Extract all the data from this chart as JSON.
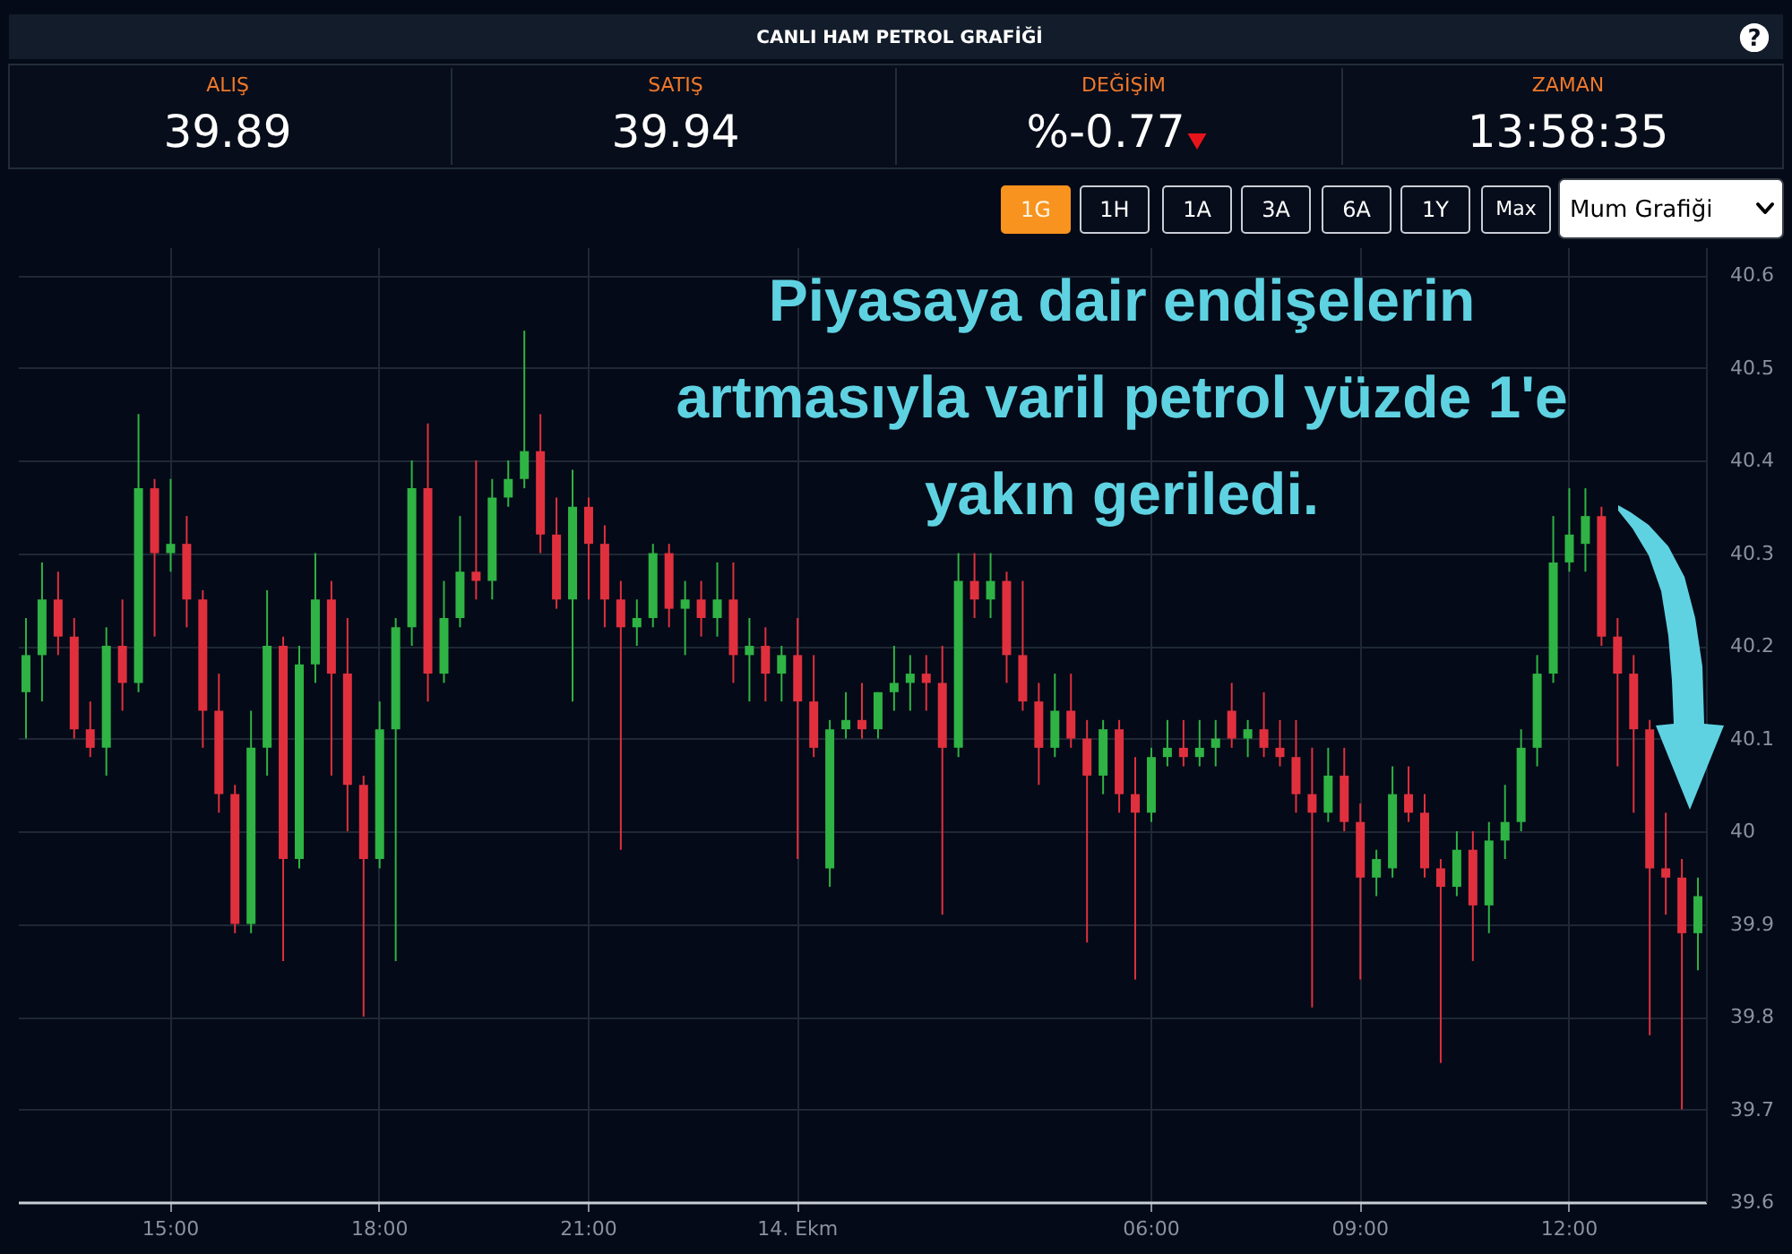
{
  "chart_data": {
    "type": "candlestick",
    "title": "CANLI HAM PETROL GRAFİĞİ",
    "annotations": [
      "?",
      "ALIŞ",
      "39.89",
      "SATIŞ",
      "39.94",
      "DEĞİŞİM",
      "%-0.77",
      "ZAMAN",
      "13:58:35",
      "1G",
      "1H",
      "1A",
      "3A",
      "6A",
      "1Y",
      "Max",
      "Mum Grafiği",
      "Piyasaya dair endişelerin\nartmasıyla varil petrol yüzde 1'e\nyakın geriledi."
    ],
    "categories": [
      null,
      null,
      null,
      null,
      null,
      null,
      null,
      null,
      null,
      "15:00",
      null,
      null,
      null,
      null,
      null,
      null,
      null,
      null,
      null,
      null,
      null,
      null,
      "18:00",
      null,
      null,
      null,
      null,
      null,
      null,
      null,
      null,
      null,
      null,
      null,
      null,
      "21:00",
      null,
      null,
      null,
      null,
      null,
      null,
      null,
      null,
      null,
      null,
      null,
      null,
      "14. Ekm",
      null,
      null,
      null,
      null,
      null,
      null,
      null,
      null,
      null,
      null,
      null,
      null,
      null,
      null,
      null,
      null,
      null,
      null,
      null,
      null,
      null,
      "06:00",
      null,
      null,
      null,
      null,
      null,
      null,
      null,
      null,
      null,
      null,
      null,
      null,
      "09:00",
      null,
      null,
      null,
      null,
      null,
      null,
      null,
      null,
      null,
      null,
      null,
      null,
      "12:00",
      null,
      null,
      null,
      null,
      null,
      null,
      null,
      null
    ],
    "ohlc": [
      [
        40.15,
        40.23,
        40.1,
        40.19
      ],
      [
        40.19,
        40.29,
        40.14,
        40.25
      ],
      [
        40.25,
        40.28,
        40.19,
        40.21
      ],
      [
        40.21,
        40.23,
        40.1,
        40.11
      ],
      [
        40.11,
        40.14,
        40.08,
        40.09
      ],
      [
        40.09,
        40.22,
        40.06,
        40.2
      ],
      [
        40.2,
        40.25,
        40.13,
        40.16
      ],
      [
        40.16,
        40.45,
        40.15,
        40.37
      ],
      [
        40.37,
        40.38,
        40.21,
        40.3
      ],
      [
        40.3,
        40.38,
        40.28,
        40.31
      ],
      [
        40.31,
        40.34,
        40.22,
        40.25
      ],
      [
        40.25,
        40.26,
        40.09,
        40.13
      ],
      [
        40.13,
        40.17,
        40.02,
        40.04
      ],
      [
        40.04,
        40.05,
        39.89,
        39.9
      ],
      [
        39.9,
        40.13,
        39.89,
        40.09
      ],
      [
        40.09,
        40.26,
        40.06,
        40.2
      ],
      [
        40.2,
        40.21,
        39.86,
        39.97
      ],
      [
        39.97,
        40.2,
        39.96,
        40.18
      ],
      [
        40.18,
        40.3,
        40.16,
        40.25
      ],
      [
        40.25,
        40.27,
        40.06,
        40.17
      ],
      [
        40.17,
        40.23,
        40.0,
        40.05
      ],
      [
        40.05,
        40.06,
        39.8,
        39.97
      ],
      [
        39.97,
        40.14,
        39.96,
        40.11
      ],
      [
        40.11,
        40.23,
        39.86,
        40.22
      ],
      [
        40.22,
        40.4,
        40.2,
        40.37
      ],
      [
        40.37,
        40.44,
        40.14,
        40.17
      ],
      [
        40.17,
        40.27,
        40.16,
        40.23
      ],
      [
        40.23,
        40.34,
        40.22,
        40.28
      ],
      [
        40.28,
        40.4,
        40.25,
        40.27
      ],
      [
        40.27,
        40.38,
        40.25,
        40.36
      ],
      [
        40.36,
        40.4,
        40.35,
        40.38
      ],
      [
        40.38,
        40.54,
        40.37,
        40.41
      ],
      [
        40.41,
        40.45,
        40.3,
        40.32
      ],
      [
        40.32,
        40.36,
        40.24,
        40.25
      ],
      [
        40.25,
        40.39,
        40.14,
        40.35
      ],
      [
        40.35,
        40.36,
        40.25,
        40.31
      ],
      [
        40.31,
        40.33,
        40.22,
        40.25
      ],
      [
        40.25,
        40.27,
        39.98,
        40.22
      ],
      [
        40.22,
        40.25,
        40.2,
        40.23
      ],
      [
        40.23,
        40.31,
        40.22,
        40.3
      ],
      [
        40.3,
        40.31,
        40.22,
        40.24
      ],
      [
        40.24,
        40.27,
        40.19,
        40.25
      ],
      [
        40.25,
        40.27,
        40.21,
        40.23
      ],
      [
        40.23,
        40.29,
        40.21,
        40.25
      ],
      [
        40.25,
        40.29,
        40.16,
        40.19
      ],
      [
        40.19,
        40.23,
        40.14,
        40.2
      ],
      [
        40.2,
        40.22,
        40.14,
        40.17
      ],
      [
        40.17,
        40.2,
        40.14,
        40.19
      ],
      [
        40.19,
        40.23,
        39.97,
        40.14
      ],
      [
        40.14,
        40.19,
        40.08,
        40.09
      ],
      [
        39.96,
        40.12,
        39.94,
        40.11
      ],
      [
        40.11,
        40.15,
        40.1,
        40.12
      ],
      [
        40.12,
        40.16,
        40.1,
        40.11
      ],
      [
        40.11,
        40.15,
        40.1,
        40.15
      ],
      [
        40.15,
        40.2,
        40.13,
        40.16
      ],
      [
        40.16,
        40.19,
        40.13,
        40.17
      ],
      [
        40.17,
        40.19,
        40.13,
        40.16
      ],
      [
        40.16,
        40.2,
        39.91,
        40.09
      ],
      [
        40.09,
        40.3,
        40.08,
        40.27
      ],
      [
        40.27,
        40.3,
        40.23,
        40.25
      ],
      [
        40.25,
        40.3,
        40.23,
        40.27
      ],
      [
        40.27,
        40.28,
        40.16,
        40.19
      ],
      [
        40.19,
        40.27,
        40.13,
        40.14
      ],
      [
        40.14,
        40.16,
        40.05,
        40.09
      ],
      [
        40.09,
        40.17,
        40.08,
        40.13
      ],
      [
        40.13,
        40.17,
        40.09,
        40.1
      ],
      [
        40.1,
        40.12,
        39.88,
        40.06
      ],
      [
        40.06,
        40.12,
        40.04,
        40.11
      ],
      [
        40.11,
        40.12,
        40.02,
        40.04
      ],
      [
        40.04,
        40.08,
        39.84,
        40.02
      ],
      [
        40.02,
        40.09,
        40.01,
        40.08
      ],
      [
        40.08,
        40.12,
        40.07,
        40.09
      ],
      [
        40.09,
        40.12,
        40.07,
        40.08
      ],
      [
        40.08,
        40.12,
        40.07,
        40.09
      ],
      [
        40.09,
        40.12,
        40.07,
        40.1
      ],
      [
        40.13,
        40.16,
        40.09,
        40.1
      ],
      [
        40.1,
        40.12,
        40.08,
        40.11
      ],
      [
        40.11,
        40.15,
        40.08,
        40.09
      ],
      [
        40.09,
        40.12,
        40.07,
        40.08
      ],
      [
        40.08,
        40.12,
        40.02,
        40.04
      ],
      [
        40.04,
        40.09,
        39.81,
        40.02
      ],
      [
        40.02,
        40.09,
        40.01,
        40.06
      ],
      [
        40.06,
        40.09,
        40.0,
        40.01
      ],
      [
        40.01,
        40.03,
        39.84,
        39.95
      ],
      [
        39.95,
        39.98,
        39.93,
        39.97
      ],
      [
        39.96,
        40.07,
        39.95,
        40.04
      ],
      [
        40.04,
        40.07,
        40.01,
        40.02
      ],
      [
        40.02,
        40.04,
        39.95,
        39.96
      ],
      [
        39.96,
        39.97,
        39.75,
        39.94
      ],
      [
        39.94,
        40.0,
        39.93,
        39.98
      ],
      [
        39.98,
        40.0,
        39.86,
        39.92
      ],
      [
        39.92,
        40.01,
        39.89,
        39.99
      ],
      [
        39.99,
        40.05,
        39.97,
        40.01
      ],
      [
        40.01,
        40.11,
        40.0,
        40.09
      ],
      [
        40.09,
        40.19,
        40.07,
        40.17
      ],
      [
        40.17,
        40.34,
        40.16,
        40.29
      ],
      [
        40.29,
        40.37,
        40.28,
        40.32
      ],
      [
        40.31,
        40.37,
        40.28,
        40.34
      ],
      [
        40.34,
        40.35,
        40.2,
        40.21
      ],
      [
        40.21,
        40.23,
        40.07,
        40.17
      ],
      [
        40.17,
        40.19,
        40.02,
        40.11
      ],
      [
        40.11,
        40.12,
        39.78,
        39.96
      ],
      [
        39.96,
        40.02,
        39.91,
        39.95
      ],
      [
        39.95,
        39.97,
        39.7,
        39.89
      ],
      [
        39.89,
        39.95,
        39.85,
        39.93
      ]
    ],
    "colors": [
      "#2fb344",
      "#2fb344",
      "#e0303e",
      "#e0303e",
      "#e0303e",
      "#2fb344",
      "#e0303e",
      "#2fb344",
      "#e0303e",
      "#2fb344",
      "#e0303e",
      "#e0303e",
      "#e0303e",
      "#e0303e",
      "#2fb344",
      "#2fb344",
      "#e0303e",
      "#2fb344",
      "#2fb344",
      "#e0303e",
      "#e0303e",
      "#e0303e",
      "#2fb344",
      "#2fb344",
      "#2fb344",
      "#e0303e",
      "#2fb344",
      "#2fb344",
      "#e0303e",
      "#2fb344",
      "#2fb344",
      "#2fb344",
      "#e0303e",
      "#e0303e",
      "#2fb344",
      "#e0303e",
      "#e0303e",
      "#e0303e",
      "#2fb344",
      "#2fb344",
      "#e0303e",
      "#2fb344",
      "#e0303e",
      "#2fb344",
      "#e0303e",
      "#2fb344",
      "#e0303e",
      "#2fb344",
      "#e0303e",
      "#e0303e",
      "#2fb344",
      "#2fb344",
      "#e0303e",
      "#2fb344",
      "#2fb344",
      "#2fb344",
      "#e0303e",
      "#e0303e",
      "#2fb344",
      "#e0303e",
      "#2fb344",
      "#e0303e",
      "#e0303e",
      "#e0303e",
      "#2fb344",
      "#e0303e",
      "#e0303e",
      "#2fb344",
      "#e0303e",
      "#e0303e",
      "#2fb344",
      "#2fb344",
      "#e0303e",
      "#2fb344",
      "#2fb344",
      "#e0303e",
      "#2fb344",
      "#e0303e",
      "#e0303e",
      "#e0303e",
      "#e0303e",
      "#2fb344",
      "#e0303e",
      "#e0303e",
      "#2fb344",
      "#2fb344",
      "#e0303e",
      "#e0303e",
      "#e0303e",
      "#2fb344",
      "#e0303e",
      "#2fb344",
      "#2fb344",
      "#2fb344",
      "#2fb344",
      "#2fb344",
      "#2fb344",
      "#2fb344",
      "#e0303e",
      "#e0303e",
      "#e0303e",
      "#e0303e",
      "#e0303e",
      "#e0303e",
      "#2fb344"
    ],
    "ylim": [
      39.6,
      40.63
    ],
    "yticks": [
      39.6,
      39.7,
      39.8,
      39.9,
      40,
      40.1,
      40.2,
      40.3,
      40.4,
      40.5,
      40.6
    ],
    "grid": true
  }
}
